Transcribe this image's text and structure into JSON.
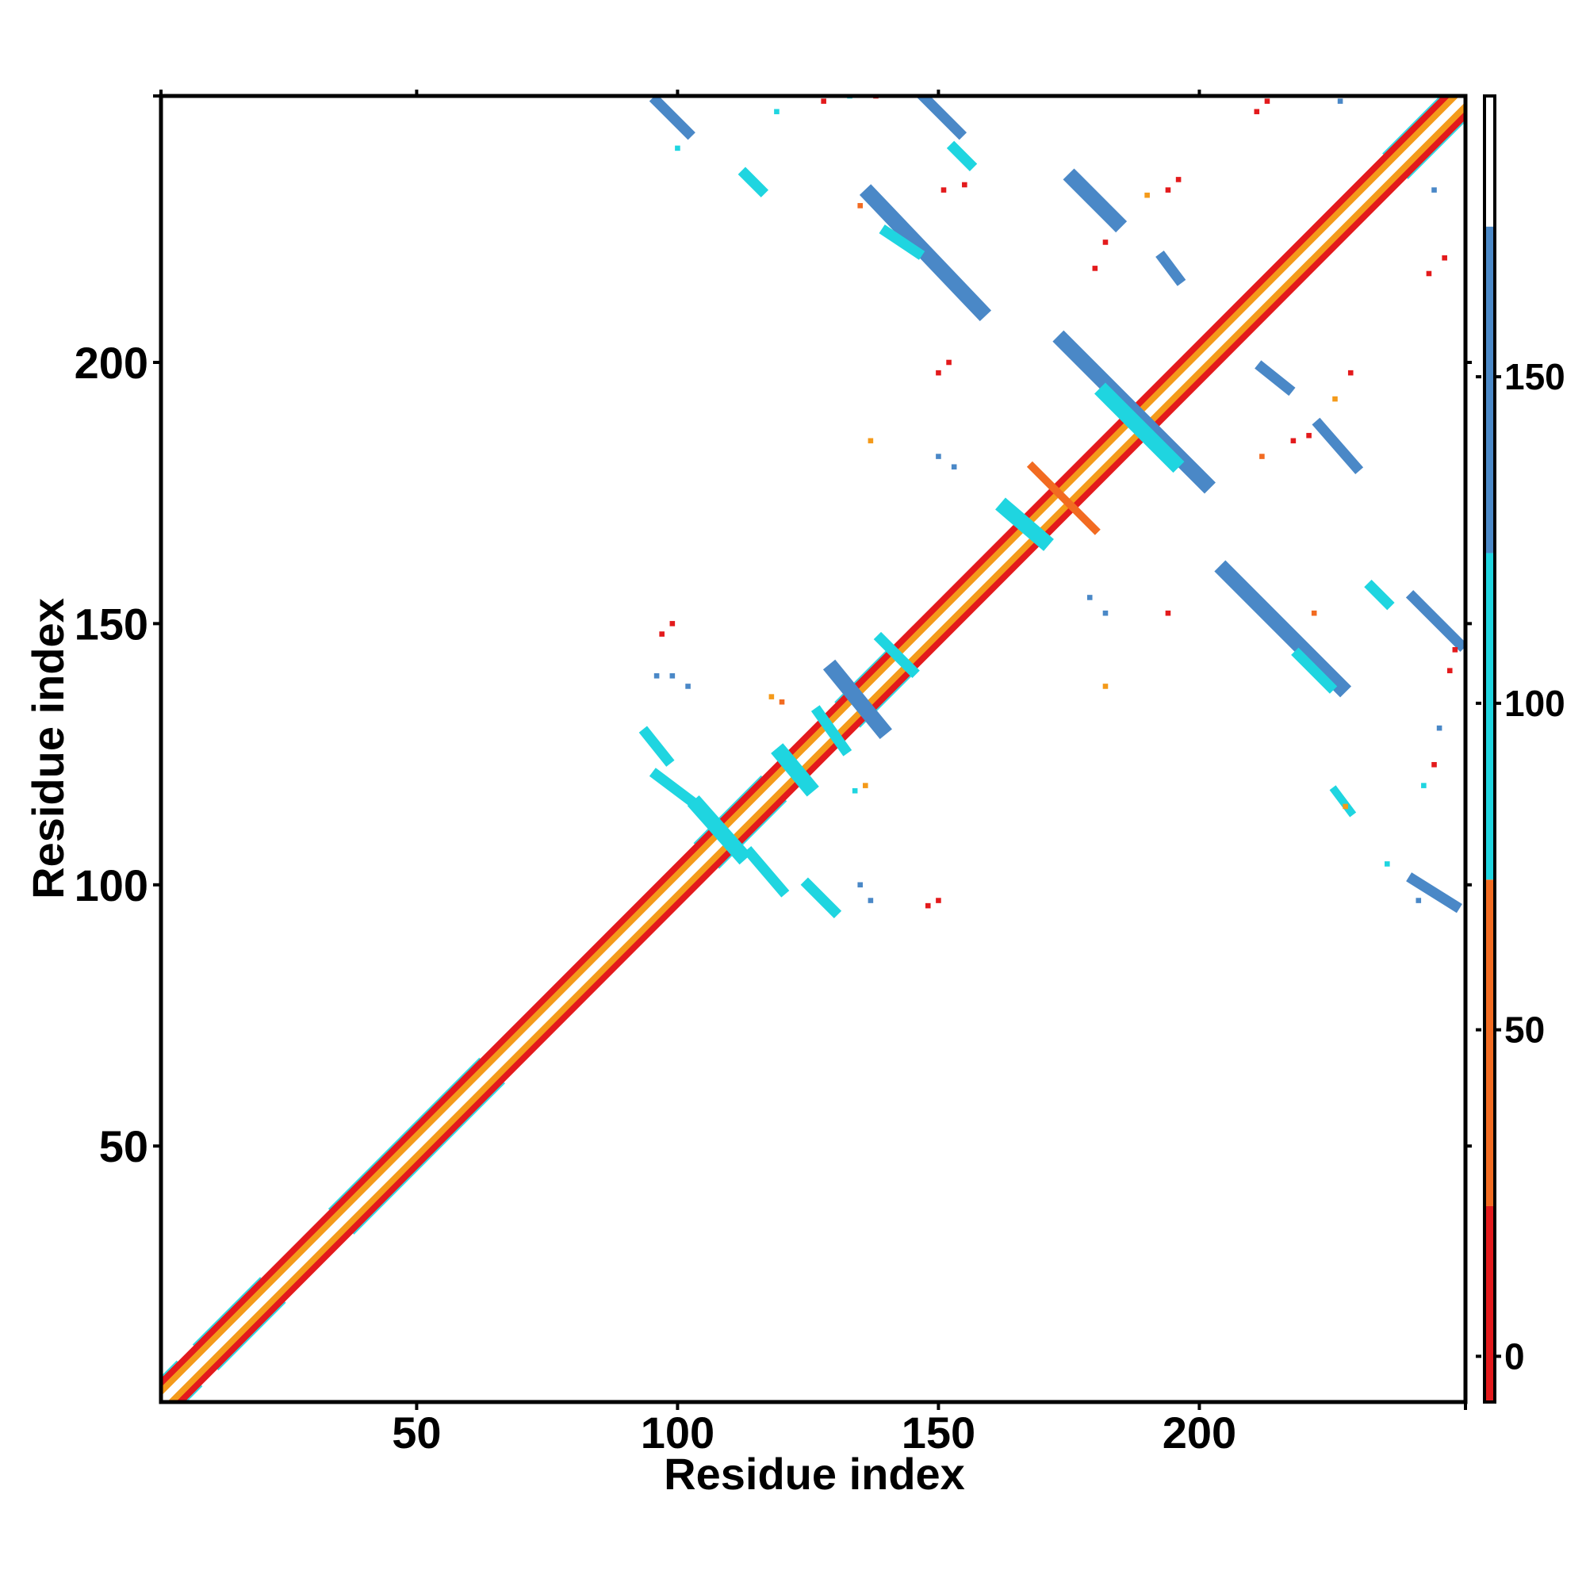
{
  "chart_data": {
    "type": "heatmap",
    "title": "",
    "xlabel": "Residue index",
    "ylabel": "Residue index",
    "xlim": [
      1,
      251
    ],
    "ylim": [
      1,
      251
    ],
    "xticks": [
      50,
      100,
      150,
      200
    ],
    "yticks": [
      50,
      100,
      150,
      200
    ],
    "colorbar": {
      "ticks": [
        0,
        50,
        100,
        150
      ],
      "range": [
        -7,
        193
      ],
      "bins": [
        {
          "from": -7,
          "to": 23,
          "color": "#e31a1c"
        },
        {
          "from": 23,
          "to": 73,
          "color": "#f26b21"
        },
        {
          "from": 73,
          "to": 123,
          "color": "#1fd5e0"
        },
        {
          "from": 123,
          "to": 173,
          "color": "#4a88c7"
        },
        {
          "from": 173,
          "to": 193,
          "color": "#ffffff"
        }
      ]
    },
    "diagonal": {
      "from": 1,
      "to": 251,
      "band_colors": [
        "#ffffff",
        "#f49a1a",
        "#e31a1c"
      ],
      "wide_ranges": [
        [
          1,
          4
        ],
        [
          12,
          20
        ],
        [
          38,
          62
        ],
        [
          108,
          116
        ],
        [
          135,
          140
        ],
        [
          240,
          248
        ]
      ]
    },
    "contact_strips": [
      {
        "x": [
          96,
          102
        ],
        "y": [
          250,
          244
        ],
        "color": "#4a88c7",
        "w": 2
      },
      {
        "x": [
          147,
          154
        ],
        "y": [
          251,
          244
        ],
        "color": "#4a88c7",
        "w": 2
      },
      {
        "x": [
          153,
          156
        ],
        "y": [
          241,
          238
        ],
        "color": "#1fd5e0",
        "w": 2
      },
      {
        "x": [
          113,
          116
        ],
        "y": [
          236,
          233
        ],
        "color": "#1fd5e0",
        "w": 2
      },
      {
        "x": [
          137,
          158
        ],
        "y": [
          232,
          210
        ],
        "color": "#4a88c7",
        "w": 3
      },
      {
        "x": [
          140,
          146
        ],
        "y": [
          225,
          221
        ],
        "color": "#1fd5e0",
        "w": 2
      },
      {
        "x": [
          176,
          184
        ],
        "y": [
          235,
          227
        ],
        "color": "#4a88c7",
        "w": 3
      },
      {
        "x": [
          193,
          196
        ],
        "y": [
          220,
          216
        ],
        "color": "#4a88c7",
        "w": 2
      },
      {
        "x": [
          174,
          201
        ],
        "y": [
          204,
          177
        ],
        "color": "#4a88c7",
        "w": 3
      },
      {
        "x": [
          182,
          195
        ],
        "y": [
          194,
          181
        ],
        "color": "#1fd5e0",
        "w": 3
      },
      {
        "x": [
          212,
          217
        ],
        "y": [
          199,
          195
        ],
        "color": "#4a88c7",
        "w": 2
      },
      {
        "x": [
          223,
          230
        ],
        "y": [
          188,
          180
        ],
        "color": "#4a88c7",
        "w": 2
      },
      {
        "x": [
          163,
          170
        ],
        "y": [
          172,
          166
        ],
        "color": "#1fd5e0",
        "w": 3
      },
      {
        "x": [
          205,
          227
        ],
        "y": [
          160,
          138
        ],
        "color": "#4a88c7",
        "w": 3
      },
      {
        "x": [
          219,
          225
        ],
        "y": [
          144,
          138
        ],
        "color": "#1fd5e0",
        "w": 2
      },
      {
        "x": [
          233,
          236
        ],
        "y": [
          157,
          154
        ],
        "color": "#1fd5e0",
        "w": 2
      },
      {
        "x": [
          241,
          250
        ],
        "y": [
          155,
          146
        ],
        "color": "#4a88c7",
        "w": 2
      },
      {
        "x": [
          241,
          249
        ],
        "y": [
          101,
          96
        ],
        "color": "#4a88c7",
        "w": 2
      },
      {
        "x": [
          226,
          229
        ],
        "y": [
          118,
          114
        ],
        "color": "#1fd5e0",
        "w": 1.5
      },
      {
        "x": [
          130,
          139
        ],
        "y": [
          141,
          130
        ],
        "color": "#4a88c7",
        "w": 3
      },
      {
        "x": [
          127,
          132
        ],
        "y": [
          133,
          126
        ],
        "color": "#1fd5e0",
        "w": 2
      },
      {
        "x": [
          139,
          145
        ],
        "y": [
          147,
          141
        ],
        "color": "#1fd5e0",
        "w": 2
      },
      {
        "x": [
          120,
          125
        ],
        "y": [
          125,
          119
        ],
        "color": "#1fd5e0",
        "w": 3
      },
      {
        "x": [
          94,
          98
        ],
        "y": [
          129,
          124
        ],
        "color": "#1fd5e0",
        "w": 2
      },
      {
        "x": [
          96,
          104
        ],
        "y": [
          121,
          115
        ],
        "color": "#1fd5e0",
        "w": 2
      },
      {
        "x": [
          114,
          120
        ],
        "y": [
          106,
          99
        ],
        "color": "#1fd5e0",
        "w": 2
      },
      {
        "x": [
          125,
          130
        ],
        "y": [
          100,
          95
        ],
        "color": "#1fd5e0",
        "w": 2
      },
      {
        "x": [
          104,
          112
        ],
        "y": [
          115,
          106
        ],
        "color": "#1fd5e0",
        "w": 3
      },
      {
        "x": [
          168,
          180
        ],
        "y": [
          180,
          168
        ],
        "color": "#f26b21",
        "w": 1.5
      }
    ],
    "scatter_points": [
      {
        "x": 100,
        "y": 241,
        "color": "#1fd5e0"
      },
      {
        "x": 119,
        "y": 248,
        "color": "#1fd5e0"
      },
      {
        "x": 128,
        "y": 250,
        "color": "#e31a1c"
      },
      {
        "x": 133,
        "y": 251,
        "color": "#1fd5e0"
      },
      {
        "x": 138,
        "y": 251,
        "color": "#e31a1c"
      },
      {
        "x": 143,
        "y": 253,
        "color": "#e31a1c"
      },
      {
        "x": 211,
        "y": 248,
        "color": "#e31a1c"
      },
      {
        "x": 213,
        "y": 250,
        "color": "#e31a1c"
      },
      {
        "x": 216,
        "y": 252,
        "color": "#f49a1a"
      },
      {
        "x": 227,
        "y": 250,
        "color": "#4a88c7"
      },
      {
        "x": 245,
        "y": 233,
        "color": "#4a88c7"
      },
      {
        "x": 151,
        "y": 233,
        "color": "#e31a1c"
      },
      {
        "x": 155,
        "y": 234,
        "color": "#e31a1c"
      },
      {
        "x": 135,
        "y": 230,
        "color": "#f26b21"
      },
      {
        "x": 190,
        "y": 232,
        "color": "#f49a1a"
      },
      {
        "x": 194,
        "y": 233,
        "color": "#e31a1c"
      },
      {
        "x": 196,
        "y": 235,
        "color": "#e31a1c"
      },
      {
        "x": 182,
        "y": 223,
        "color": "#e31a1c"
      },
      {
        "x": 180,
        "y": 218,
        "color": "#e31a1c"
      },
      {
        "x": 244,
        "y": 217,
        "color": "#e31a1c"
      },
      {
        "x": 247,
        "y": 220,
        "color": "#e31a1c"
      },
      {
        "x": 150,
        "y": 198,
        "color": "#e31a1c"
      },
      {
        "x": 152,
        "y": 200,
        "color": "#e31a1c"
      },
      {
        "x": 226,
        "y": 193,
        "color": "#f49a1a"
      },
      {
        "x": 229,
        "y": 198,
        "color": "#e31a1c"
      },
      {
        "x": 221,
        "y": 186,
        "color": "#e31a1c"
      },
      {
        "x": 218,
        "y": 185,
        "color": "#e31a1c"
      },
      {
        "x": 212,
        "y": 182,
        "color": "#f26b21"
      },
      {
        "x": 137,
        "y": 185,
        "color": "#f49a1a"
      },
      {
        "x": 150,
        "y": 182,
        "color": "#4a88c7"
      },
      {
        "x": 153,
        "y": 180,
        "color": "#4a88c7"
      },
      {
        "x": 179,
        "y": 155,
        "color": "#4a88c7"
      },
      {
        "x": 182,
        "y": 152,
        "color": "#4a88c7"
      },
      {
        "x": 194,
        "y": 152,
        "color": "#e31a1c"
      },
      {
        "x": 222,
        "y": 152,
        "color": "#f26b21"
      },
      {
        "x": 249,
        "y": 145,
        "color": "#e31a1c"
      },
      {
        "x": 248,
        "y": 141,
        "color": "#e31a1c"
      },
      {
        "x": 97,
        "y": 148,
        "color": "#e31a1c"
      },
      {
        "x": 99,
        "y": 150,
        "color": "#e31a1c"
      },
      {
        "x": 96,
        "y": 140,
        "color": "#4a88c7"
      },
      {
        "x": 99,
        "y": 140,
        "color": "#4a88c7"
      },
      {
        "x": 102,
        "y": 138,
        "color": "#4a88c7"
      },
      {
        "x": 118,
        "y": 136,
        "color": "#f49a1a"
      },
      {
        "x": 120,
        "y": 135,
        "color": "#f26b21"
      },
      {
        "x": 182,
        "y": 138,
        "color": "#f49a1a"
      },
      {
        "x": 246,
        "y": 130,
        "color": "#4a88c7"
      },
      {
        "x": 245,
        "y": 123,
        "color": "#e31a1c"
      },
      {
        "x": 243,
        "y": 119,
        "color": "#1fd5e0"
      },
      {
        "x": 136,
        "y": 119,
        "color": "#f49a1a"
      },
      {
        "x": 134,
        "y": 118,
        "color": "#1fd5e0"
      },
      {
        "x": 228,
        "y": 115,
        "color": "#f49a1a"
      },
      {
        "x": 236,
        "y": 104,
        "color": "#1fd5e0"
      },
      {
        "x": 135,
        "y": 100,
        "color": "#4a88c7"
      },
      {
        "x": 137,
        "y": 97,
        "color": "#4a88c7"
      },
      {
        "x": 148,
        "y": 96,
        "color": "#e31a1c"
      },
      {
        "x": 150,
        "y": 97,
        "color": "#e31a1c"
      },
      {
        "x": 242,
        "y": 97,
        "color": "#4a88c7"
      }
    ]
  }
}
